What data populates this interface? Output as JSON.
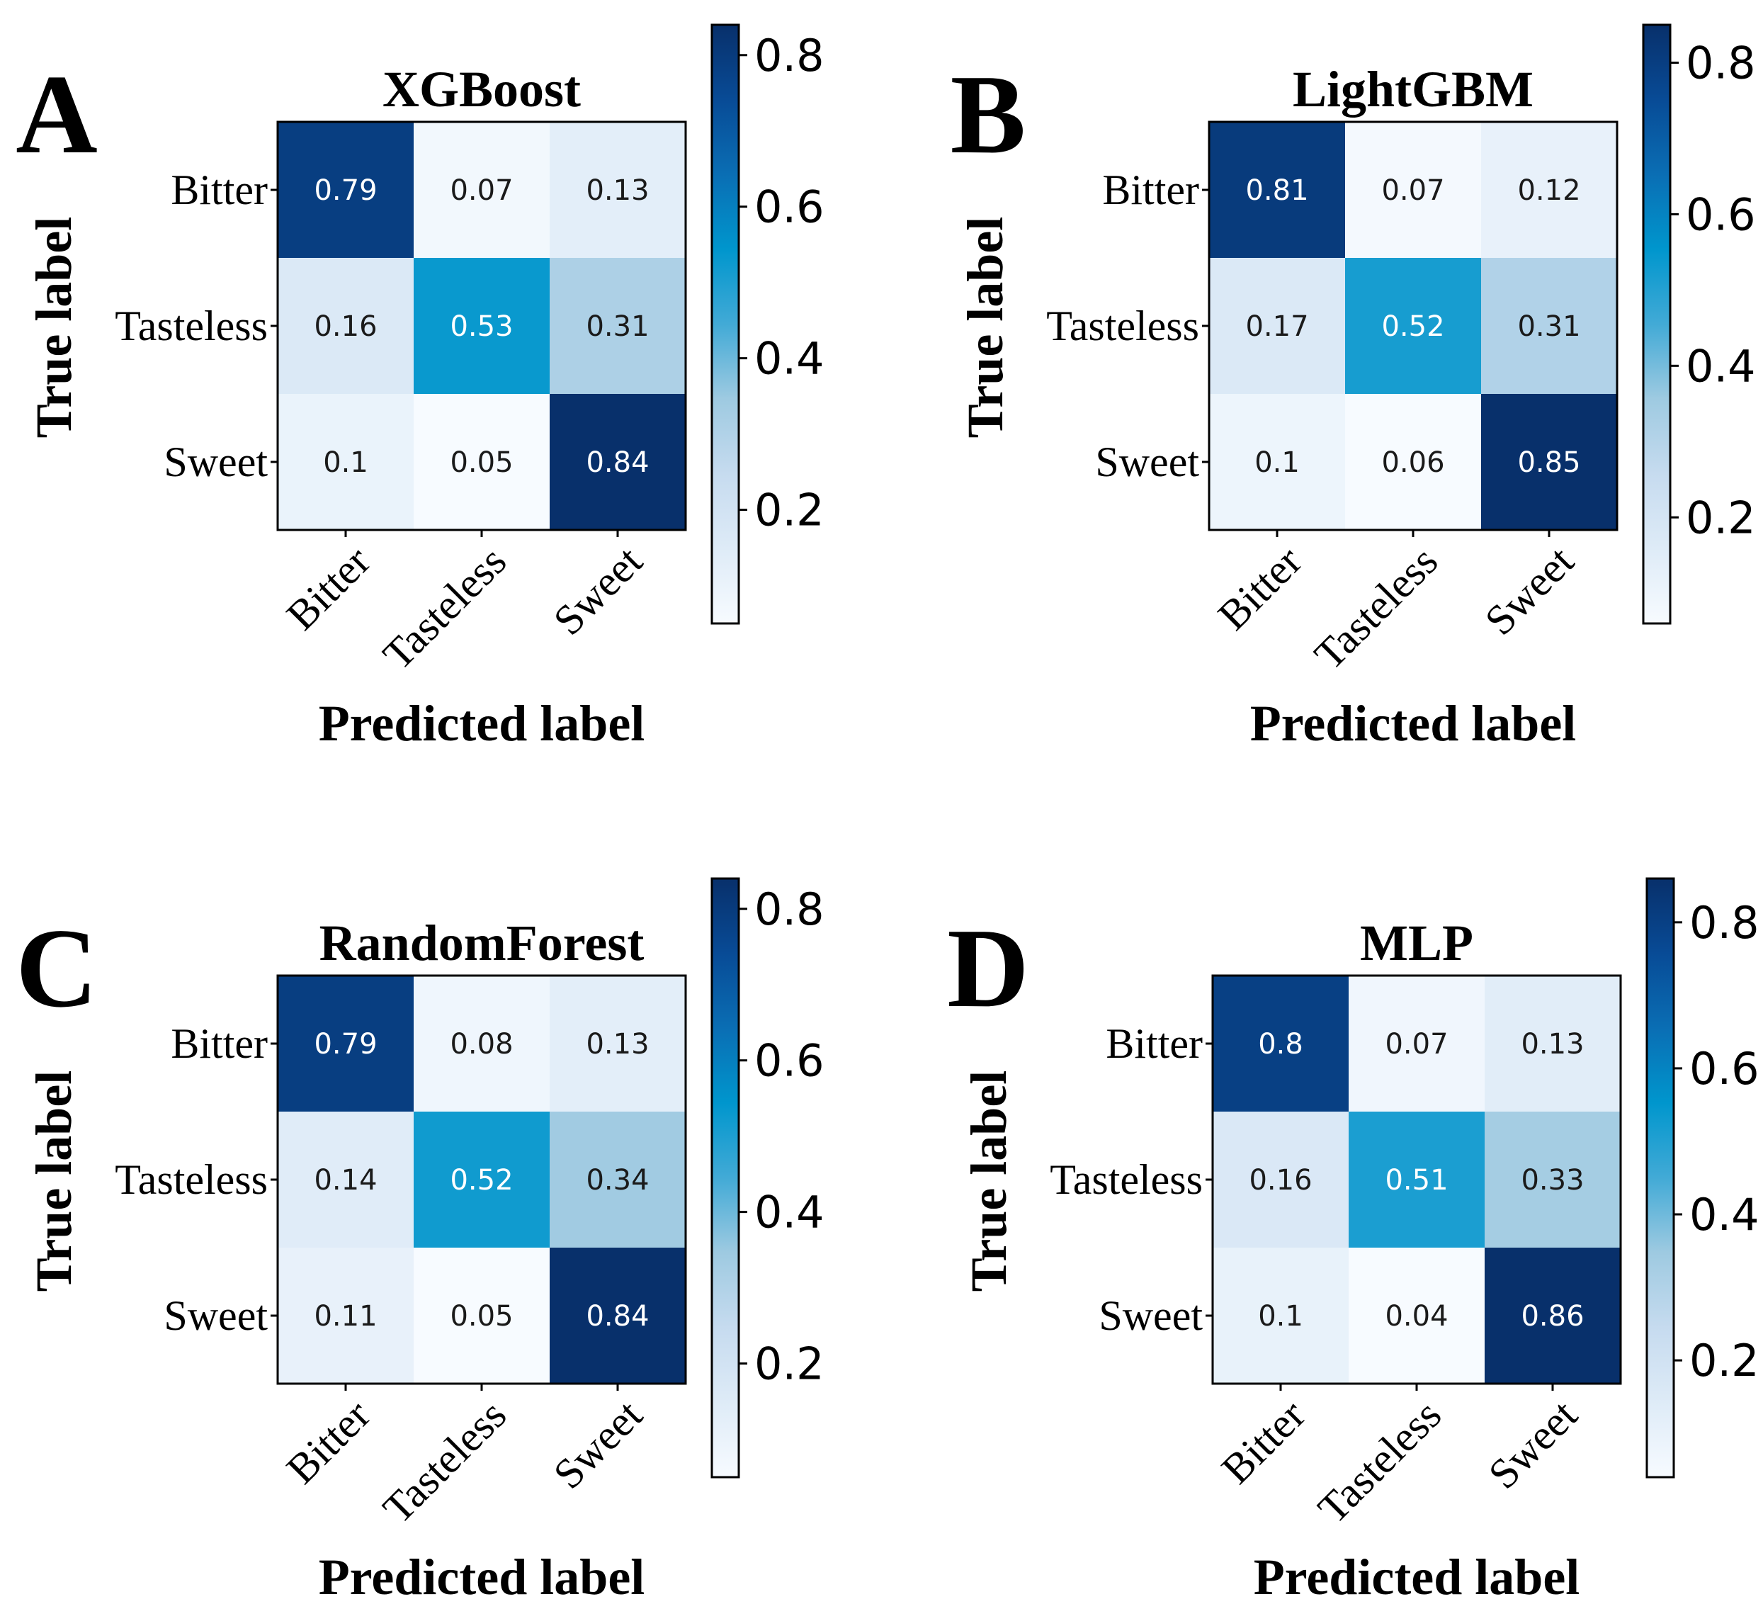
{
  "figure": {
    "panels": [
      {
        "letter": "A"
      },
      {
        "letter": "B"
      },
      {
        "letter": "C"
      },
      {
        "letter": "D"
      }
    ]
  },
  "chart_data": [
    {
      "type": "heatmap",
      "title": "XGBoost",
      "xlabel": "Predicted label",
      "ylabel": "True label",
      "x_categories": [
        "Bitter",
        "Tasteless",
        "Sweet"
      ],
      "y_categories": [
        "Bitter",
        "Tasteless",
        "Sweet"
      ],
      "values": [
        [
          "0.79",
          "0.07",
          "0.13"
        ],
        [
          "0.16",
          "0.53",
          "0.31"
        ],
        [
          "0.1",
          "0.05",
          "0.84"
        ]
      ],
      "colorbar": {
        "range": [
          0.05,
          0.84
        ],
        "ticks": [
          "0.2",
          "0.4",
          "0.6",
          "0.8"
        ],
        "colormap": "Blues"
      }
    },
    {
      "type": "heatmap",
      "title": "LightGBM",
      "xlabel": "Predicted label",
      "ylabel": "True label",
      "x_categories": [
        "Bitter",
        "Tasteless",
        "Sweet"
      ],
      "y_categories": [
        "Bitter",
        "Tasteless",
        "Sweet"
      ],
      "values": [
        [
          "0.81",
          "0.07",
          "0.12"
        ],
        [
          "0.17",
          "0.52",
          "0.31"
        ],
        [
          "0.1",
          "0.06",
          "0.85"
        ]
      ],
      "colorbar": {
        "range": [
          0.06,
          0.85
        ],
        "ticks": [
          "0.2",
          "0.4",
          "0.6",
          "0.8"
        ],
        "colormap": "Blues"
      }
    },
    {
      "type": "heatmap",
      "title": "RandomForest",
      "xlabel": "Predicted label",
      "ylabel": "True label",
      "x_categories": [
        "Bitter",
        "Tasteless",
        "Sweet"
      ],
      "y_categories": [
        "Bitter",
        "Tasteless",
        "Sweet"
      ],
      "values": [
        [
          "0.79",
          "0.08",
          "0.13"
        ],
        [
          "0.14",
          "0.52",
          "0.34"
        ],
        [
          "0.11",
          "0.05",
          "0.84"
        ]
      ],
      "colorbar": {
        "range": [
          0.05,
          0.84
        ],
        "ticks": [
          "0.2",
          "0.4",
          "0.6",
          "0.8"
        ],
        "colormap": "Blues"
      }
    },
    {
      "type": "heatmap",
      "title": "MLP",
      "xlabel": "Predicted label",
      "ylabel": "True label",
      "x_categories": [
        "Bitter",
        "Tasteless",
        "Sweet"
      ],
      "y_categories": [
        "Bitter",
        "Tasteless",
        "Sweet"
      ],
      "values": [
        [
          "0.8",
          "0.07",
          "0.13"
        ],
        [
          "0.16",
          "0.51",
          "0.33"
        ],
        [
          "0.1",
          "0.04",
          "0.86"
        ]
      ],
      "colorbar": {
        "range": [
          0.04,
          0.86
        ],
        "ticks": [
          "0.2",
          "0.4",
          "0.6",
          "0.8"
        ],
        "colormap": "Blues"
      }
    }
  ]
}
